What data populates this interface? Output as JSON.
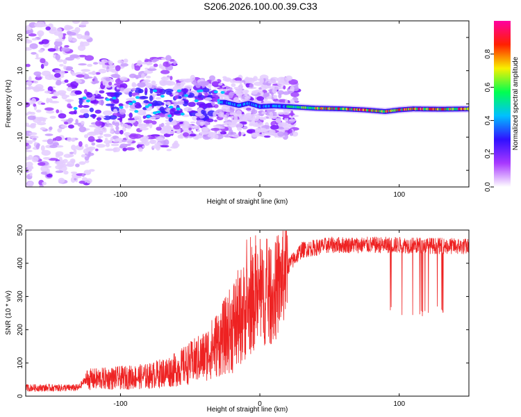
{
  "title": "S206.2026.100.00.39.C33",
  "chart_data": [
    {
      "type": "heatmap",
      "name": "spectrogram",
      "xlabel": "Height of straight line (km)",
      "ylabel": "Frequency (Hz)",
      "xlim": [
        -168,
        150
      ],
      "ylim": [
        -25,
        25
      ],
      "xticks": [
        -100,
        0,
        100
      ],
      "yticks": [
        -20,
        -10,
        0,
        10,
        20
      ],
      "xtick_labels": [
        "-100",
        "0",
        "100"
      ],
      "ytick_labels": [
        "-20",
        "-10",
        "0",
        "10",
        "20"
      ],
      "colorbar": {
        "label": "Normalized spectral amplitude",
        "range": [
          0,
          1
        ],
        "ticks": [
          0.0,
          0.2,
          0.4,
          0.6,
          0.8
        ],
        "tick_labels": [
          "0.0",
          "0.2",
          "0.4",
          "0.6",
          "0.8"
        ],
        "colors": [
          "#ffffff",
          "#a838ff",
          "#3010ff",
          "#00c0ff",
          "#00ff50",
          "#f8f000",
          "#ff2000",
          "#ff00a0"
        ]
      },
      "ridge": [
        {
          "x": -25,
          "y": 0.5
        },
        {
          "x": -15,
          "y": -0.5
        },
        {
          "x": -8,
          "y": 0.2
        },
        {
          "x": 0,
          "y": -0.8
        },
        {
          "x": 10,
          "y": -0.6
        },
        {
          "x": 20,
          "y": -0.8
        },
        {
          "x": 40,
          "y": -1.3
        },
        {
          "x": 60,
          "y": -1.5
        },
        {
          "x": 75,
          "y": -1.8
        },
        {
          "x": 90,
          "y": -2.3
        },
        {
          "x": 100,
          "y": -1.8
        },
        {
          "x": 110,
          "y": -1.5
        },
        {
          "x": 130,
          "y": -1.6
        },
        {
          "x": 150,
          "y": -1.5
        }
      ]
    },
    {
      "type": "line",
      "name": "snr",
      "xlabel": "Height of straight line (km)",
      "ylabel": "SNR (10 * v/v)",
      "xlim": [
        -168,
        150
      ],
      "ylim": [
        0,
        500
      ],
      "xticks": [
        -100,
        0,
        100
      ],
      "yticks": [
        0,
        100,
        200,
        300,
        400,
        500
      ],
      "xtick_labels": [
        "-100",
        "0",
        "100"
      ],
      "ytick_labels": [
        "0",
        "100",
        "200",
        "300",
        "400",
        "500"
      ],
      "color": "#ee2222",
      "baseline": [
        {
          "x": -168,
          "y": 25
        },
        {
          "x": -130,
          "y": 25
        },
        {
          "x": -125,
          "y": 50
        },
        {
          "x": -100,
          "y": 55
        },
        {
          "x": -80,
          "y": 60
        },
        {
          "x": -60,
          "y": 80
        },
        {
          "x": -40,
          "y": 120
        },
        {
          "x": -25,
          "y": 180
        },
        {
          "x": -12,
          "y": 250
        },
        {
          "x": 0,
          "y": 300
        },
        {
          "x": 10,
          "y": 300
        },
        {
          "x": 20,
          "y": 390
        },
        {
          "x": 30,
          "y": 440
        },
        {
          "x": 50,
          "y": 455
        },
        {
          "x": 100,
          "y": 455
        },
        {
          "x": 150,
          "y": 450
        }
      ]
    }
  ]
}
